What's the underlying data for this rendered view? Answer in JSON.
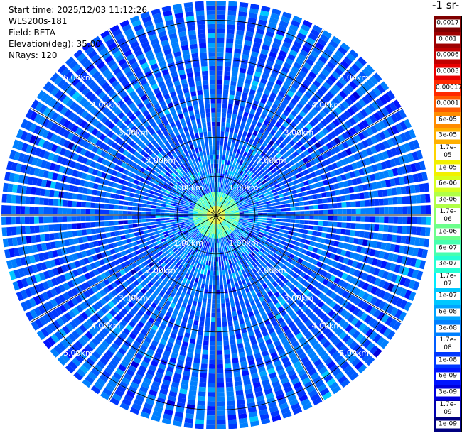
{
  "header": {
    "start_time": "Start time: 2025/12/03 11:12:26",
    "device": "WLS200s-181",
    "field": "Field: BETA",
    "elevation": "Elevation(deg): 35.00",
    "nrays": "NRays: 120"
  },
  "colorbar": {
    "unit_label": "-1 sr-",
    "labels": [
      "0.0017",
      "0.001",
      "0.0006",
      "0.0003",
      "0.00017",
      "0.0001",
      "6e-05",
      "3e-05",
      "1.7e-05",
      "1e-05",
      "6e-06",
      "3e-06",
      "1.7e-06",
      "1e-06",
      "6e-07",
      "3e-07",
      "1.7e-07",
      "1e-07",
      "6e-08",
      "3e-08",
      "1.7e-08",
      "1e-08",
      "6e-09",
      "3e-09",
      "1.7e-09",
      "1e-09"
    ],
    "colors": [
      "#7f0000",
      "#9e0000",
      "#c00000",
      "#e80000",
      "#ff2a00",
      "#ff5a00",
      "#ff8c00",
      "#ffb000",
      "#ffd400",
      "#f2f000",
      "#d8ff1e",
      "#b0ff47",
      "#8cff6c",
      "#6cff8c",
      "#47ffb0",
      "#26ffd4",
      "#00ecff",
      "#00c8ff",
      "#00a4ff",
      "#0080ff",
      "#005cff",
      "#0038ff",
      "#0014ff",
      "#0000dd",
      "#0000b0",
      "#000080"
    ],
    "text_color_light": "#ffffff"
  },
  "chart_data": {
    "type": "heatmap",
    "projection": "polar (PPI scan)",
    "field": "BETA",
    "elevation_deg": 35.0,
    "n_rays": 120,
    "range_rings": [
      {
        "range_km": 1,
        "label": "1.00km"
      },
      {
        "range_km": 2,
        "label": "2.00km"
      },
      {
        "range_km": 3,
        "label": "3.00km"
      },
      {
        "range_km": 4,
        "label": "4.00km"
      },
      {
        "range_km": 5,
        "label": "5.00km"
      }
    ],
    "max_range_km": 5.5,
    "ring_label_azimuths_deg": [
      45,
      135,
      225,
      315
    ],
    "background_level": "1.7e-08",
    "near_center_level": "1.7e-05",
    "crosshair": true,
    "radial_grid_step_deg": 30
  }
}
